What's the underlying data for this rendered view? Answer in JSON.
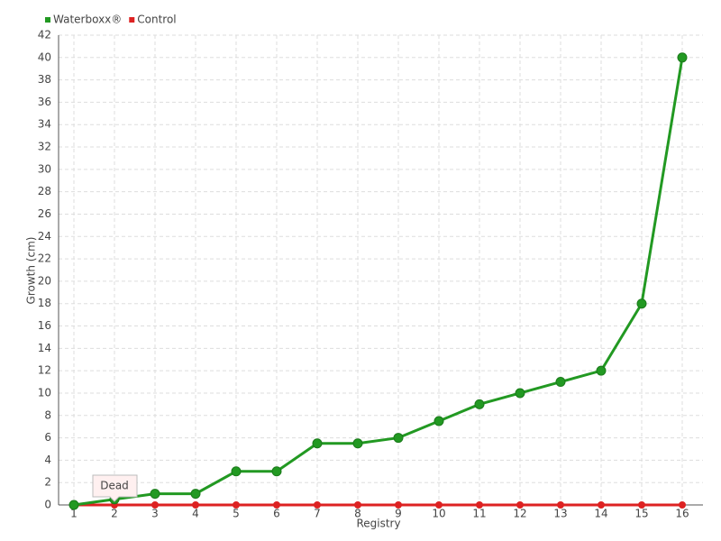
{
  "chart_data": {
    "type": "line",
    "x_label": "Registry",
    "y_label": "Growth (cm)",
    "categories": [
      "1",
      "2",
      "3",
      "4",
      "5",
      "6",
      "7",
      "8",
      "9",
      "10",
      "11",
      "12",
      "13",
      "14",
      "15",
      "16"
    ],
    "series": [
      {
        "name": "Waterboxx®",
        "color": "#229922",
        "values": [
          0,
          0.5,
          1,
          1,
          3,
          3,
          5.5,
          5.5,
          6,
          7.5,
          9,
          10,
          11,
          12,
          18,
          40
        ]
      },
      {
        "name": "Control",
        "color": "#dd2222",
        "values": [
          0,
          0,
          0,
          0,
          0,
          0,
          0,
          0,
          0,
          0,
          0,
          0,
          0,
          0,
          0,
          0
        ]
      }
    ],
    "annotation": "Dead",
    "ylim": [
      0,
      42
    ],
    "yticks": [
      0,
      2,
      4,
      6,
      8,
      10,
      12,
      14,
      16,
      18,
      20,
      22,
      24,
      26,
      28,
      30,
      32,
      34,
      36,
      38,
      40,
      42
    ],
    "grid": true,
    "legend": "top-left"
  }
}
